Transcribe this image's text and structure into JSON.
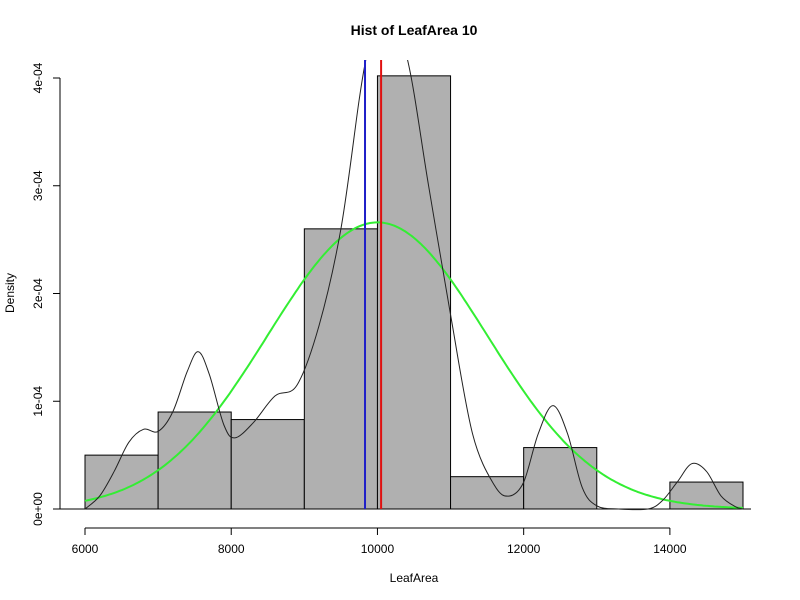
{
  "chart_data": {
    "type": "histogram",
    "title": "Hist of LeafArea  10",
    "xlabel": "LeafArea",
    "ylabel": "Density",
    "xlim": [
      6000,
      15000
    ],
    "ylim": [
      0,
      0.0004
    ],
    "x_ticks": [
      6000,
      8000,
      10000,
      12000,
      14000
    ],
    "x_tick_labels": [
      "6000",
      "8000",
      "10000",
      "12000",
      "14000"
    ],
    "y_ticks": [
      0,
      0.0001,
      0.0002,
      0.0003,
      0.0004
    ],
    "y_tick_labels": [
      "0e+00",
      "1e-04",
      "2e-04",
      "3e-04",
      "4e-04"
    ],
    "bars": [
      {
        "x0": 6000,
        "x1": 7000,
        "density": 5e-05
      },
      {
        "x0": 7000,
        "x1": 8000,
        "density": 9e-05
      },
      {
        "x0": 8000,
        "x1": 9000,
        "density": 8.3e-05
      },
      {
        "x0": 9000,
        "x1": 10000,
        "density": 0.00026
      },
      {
        "x0": 10000,
        "x1": 11000,
        "density": 0.000402
      },
      {
        "x0": 11000,
        "x1": 12000,
        "density": 3e-05
      },
      {
        "x0": 12000,
        "x1": 13000,
        "density": 5.7e-05
      },
      {
        "x0": 13000,
        "x1": 14000,
        "density": 0
      },
      {
        "x0": 14000,
        "x1": 15000,
        "density": 2.5e-05
      }
    ],
    "kde_curve": {
      "color": "#222222",
      "points": [
        [
          6000,
          0.0
        ],
        [
          6200,
          1.2e-05
        ],
        [
          6400,
          3.5e-05
        ],
        [
          6600,
          6.2e-05
        ],
        [
          6800,
          7.4e-05
        ],
        [
          7000,
          7.2e-05
        ],
        [
          7200,
          9e-05
        ],
        [
          7400,
          0.000128
        ],
        [
          7550,
          0.000146
        ],
        [
          7700,
          0.000125
        ],
        [
          7900,
          7.8e-05
        ],
        [
          8050,
          6.6e-05
        ],
        [
          8300,
          8e-05
        ],
        [
          8600,
          0.000105
        ],
        [
          8900,
          0.000115
        ],
        [
          9200,
          0.00017
        ],
        [
          9500,
          0.00026
        ],
        [
          9750,
          0.00038
        ],
        [
          9850,
          0.00042
        ],
        [
          9950,
          0.00045
        ],
        [
          10100,
          0.00046
        ],
        [
          10400,
          0.00042
        ],
        [
          10700,
          0.0003
        ],
        [
          11000,
          0.00018
        ],
        [
          11300,
          7e-05
        ],
        [
          11600,
          2.2e-05
        ],
        [
          11800,
          1.2e-05
        ],
        [
          12000,
          2.5e-05
        ],
        [
          12200,
          7e-05
        ],
        [
          12400,
          9.6e-05
        ],
        [
          12600,
          7e-05
        ],
        [
          12800,
          2e-05
        ],
        [
          13000,
          3e-06
        ],
        [
          13300,
          0.0
        ],
        [
          13700,
          0.0
        ],
        [
          13900,
          8e-06
        ],
        [
          14100,
          2.5e-05
        ],
        [
          14300,
          4.2e-05
        ],
        [
          14500,
          3.5e-05
        ],
        [
          14700,
          1.2e-05
        ],
        [
          14900,
          2e-06
        ],
        [
          15000,
          0.0
        ]
      ]
    },
    "normal_curve": {
      "color": "#33ee33",
      "mean": 10000,
      "sd": 1500,
      "peak_density": 0.000266
    },
    "vlines": [
      {
        "name": "median",
        "x": 9830,
        "color": "#1f1fc8"
      },
      {
        "name": "mean",
        "x": 10050,
        "color": "#e01010"
      }
    ],
    "grid": false,
    "legend": "none"
  }
}
